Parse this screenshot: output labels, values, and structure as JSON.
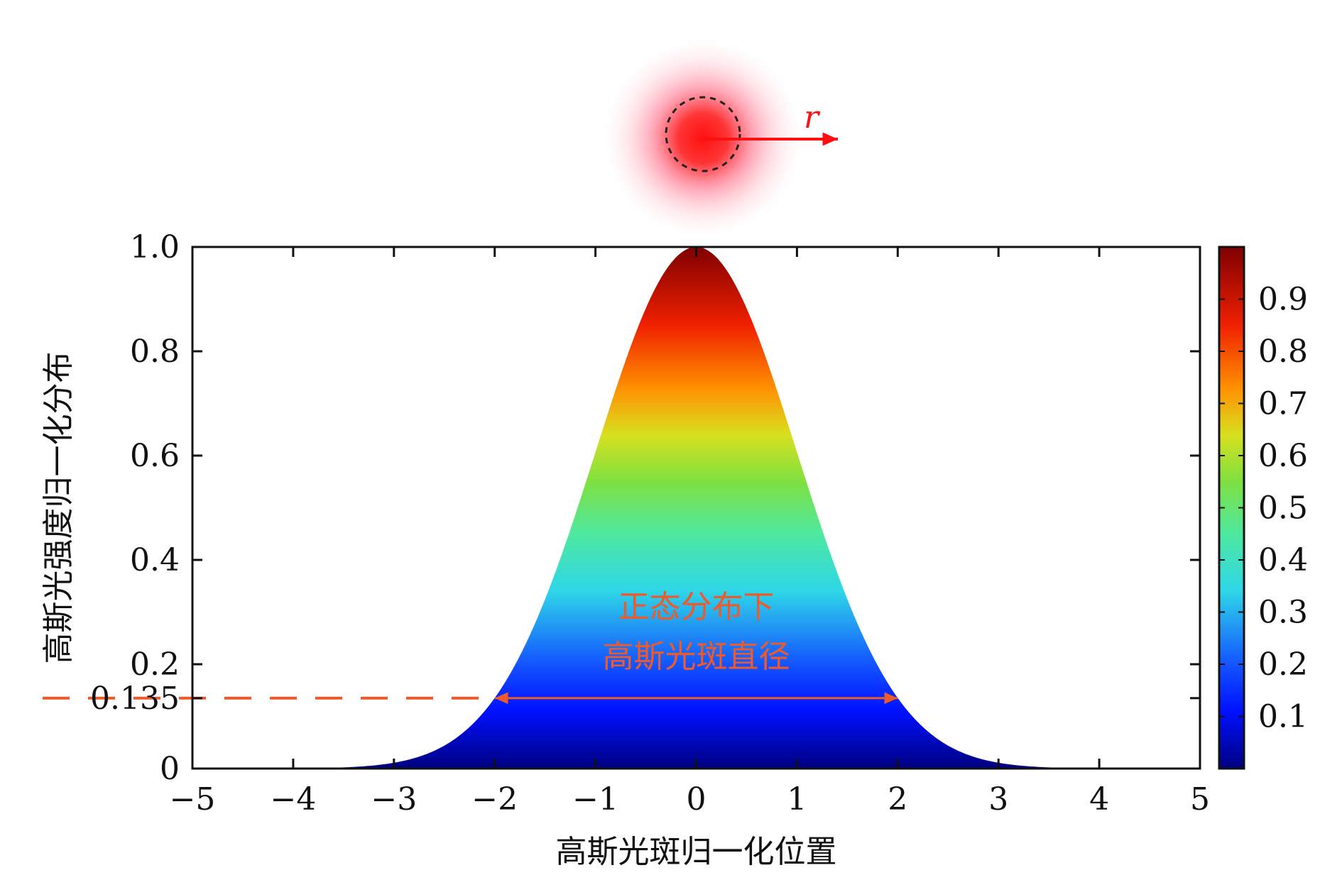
{
  "chart_data": {
    "type": "area",
    "xlabel": "高斯光斑归一化位置",
    "ylabel": "高斯光强度归一化分布",
    "xlim": [
      -5,
      5
    ],
    "ylim": [
      0,
      1.0
    ],
    "x_ticks": [
      -5,
      -4,
      -3,
      -2,
      -1,
      0,
      1,
      2,
      3,
      4,
      5
    ],
    "x_tick_labels": [
      "−5",
      "−4",
      "−3",
      "−2",
      "−1",
      "0",
      "1",
      "2",
      "3",
      "4",
      "5"
    ],
    "y_ticks": [
      0,
      0.135,
      0.2,
      0.4,
      0.6,
      0.8,
      1.0
    ],
    "y_tick_labels": [
      "0",
      "0.135",
      "0.2",
      "0.4",
      "0.6",
      "0.8",
      "1.0"
    ],
    "colorbar": {
      "colormap": "jet",
      "range": [
        0,
        1.0
      ],
      "ticks": [
        0.1,
        0.2,
        0.3,
        0.4,
        0.5,
        0.6,
        0.7,
        0.8,
        0.9
      ],
      "tick_labels": [
        "0.1",
        "0.2",
        "0.3",
        "0.4",
        "0.5",
        "0.6",
        "0.7",
        "0.8",
        "0.9"
      ]
    },
    "series": [
      {
        "curve": "gaussian",
        "peak": 1.0,
        "center": 0,
        "x": [
          -5,
          -4.5,
          -4,
          -3.5,
          -3,
          -2.5,
          -2,
          -1.5,
          -1,
          -0.5,
          0,
          0.5,
          1,
          1.5,
          2,
          2.5,
          3,
          3.5,
          4,
          4.5,
          5
        ],
        "y": [
          0.0,
          0.0,
          0.0,
          0.002,
          0.011,
          0.044,
          0.135,
          0.325,
          0.607,
          0.882,
          1.0,
          0.882,
          0.607,
          0.325,
          0.135,
          0.044,
          0.011,
          0.002,
          0.0,
          0.0,
          0.0
        ]
      }
    ],
    "threshold_line": {
      "y": 0.135,
      "x_from": -5,
      "x_to": -2.1,
      "color": "#ee5a2a"
    },
    "diameter_arrow": {
      "x_from": -2,
      "x_to": 2,
      "y": 0.135,
      "color": "#ee5a2a"
    },
    "annotation": {
      "lines": [
        "正态分布下",
        "高斯光斑直径"
      ],
      "color": "#ee5a2a",
      "x": 0,
      "y": 0.29
    },
    "beam_spot": {
      "radius_label": "r",
      "color": "#ff2020"
    }
  }
}
